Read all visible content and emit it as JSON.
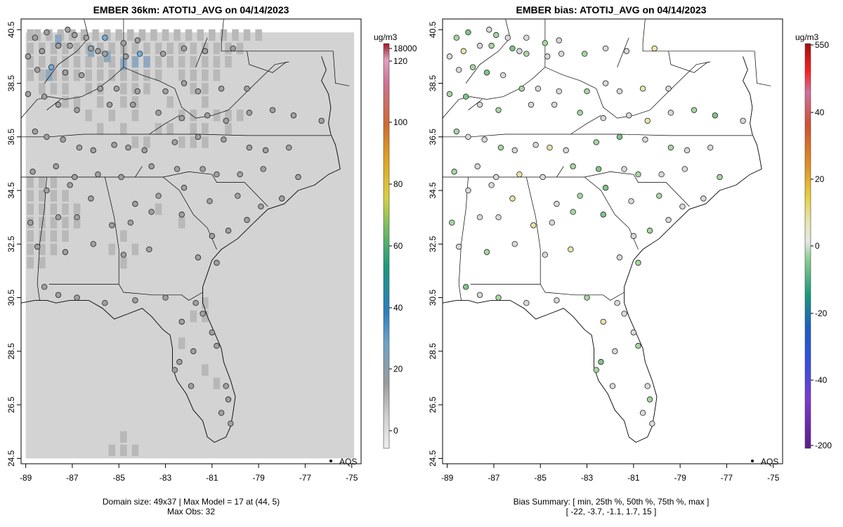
{
  "left_panel": {
    "title": "EMBER 36km: ATOTIJ_AVG on 04/14/2023",
    "footer_line1": "Domain size: 49x37 | Max Model = 17 at (44, 5)",
    "footer_line2": "Max Obs: 32",
    "legend_label": "AQS",
    "colorbar_unit": "ug/m3",
    "colorbar_ticks": [
      "18000",
      "120",
      "100",
      "80",
      "60",
      "40",
      "20",
      "0"
    ]
  },
  "right_panel": {
    "title": "EMBER bias: ATOTIJ_AVG on 04/14/2023",
    "footer_line1": "Bias Summary: [ min, 25th %, 50th %, 75th %, max ]",
    "footer_line2": "[ -22,   -3.7,   -1.1,   1.7,   15 ]",
    "legend_label": "AQS",
    "colorbar_unit": "ug/m3",
    "colorbar_ticks": [
      "550",
      "40",
      "20",
      "0",
      "-20",
      "-40",
      "-200"
    ]
  },
  "axes": {
    "x_ticks": [
      "-89",
      "-87",
      "-85",
      "-83",
      "-81",
      "-79",
      "-77",
      "-75"
    ],
    "y_ticks": [
      "40.5",
      "38.5",
      "36.5",
      "34.5",
      "32.5",
      "30.5",
      "28.5",
      "26.5",
      "24.5"
    ]
  },
  "map_data": {
    "lon_range": [
      -89.2,
      -74.6
    ],
    "lat_range": [
      24.3,
      40.9
    ],
    "sites": [
      [
        -88.6,
        40.2
      ],
      [
        -88.1,
        40.4
      ],
      [
        -87.2,
        40.5
      ],
      [
        -86.9,
        40.3
      ],
      [
        -86.4,
        40.2
      ],
      [
        -85.6,
        40.2
      ],
      [
        -84.8,
        40.0
      ],
      [
        -84.2,
        40.1
      ],
      [
        -88.9,
        39.5
      ],
      [
        -88.3,
        39.7
      ],
      [
        -87.6,
        39.9
      ],
      [
        -87.1,
        39.9
      ],
      [
        -86.2,
        39.8
      ],
      [
        -85.9,
        39.7
      ],
      [
        -85.6,
        39.6
      ],
      [
        -84.7,
        39.5
      ],
      [
        -84.1,
        39.6
      ],
      [
        -83.1,
        39.6
      ],
      [
        -82.2,
        39.8
      ],
      [
        -81.3,
        39.7
      ],
      [
        -80.1,
        39.8
      ],
      [
        -88.5,
        39.0
      ],
      [
        -87.9,
        39.1
      ],
      [
        -87.3,
        38.9
      ],
      [
        -86.6,
        38.8
      ],
      [
        -85.8,
        38.3
      ],
      [
        -85.1,
        38.3
      ],
      [
        -84.2,
        38.2
      ],
      [
        -83.0,
        38.2
      ],
      [
        -82.2,
        38.5
      ],
      [
        -81.6,
        38.2
      ],
      [
        -80.6,
        38.3
      ],
      [
        -79.5,
        38.3
      ],
      [
        -88.9,
        38.1
      ],
      [
        -88.2,
        38.0
      ],
      [
        -87.6,
        37.7
      ],
      [
        -86.8,
        37.5
      ],
      [
        -85.4,
        37.7
      ],
      [
        -84.4,
        37.7
      ],
      [
        -83.3,
        37.4
      ],
      [
        -82.3,
        37.2
      ],
      [
        -81.2,
        37.3
      ],
      [
        -80.4,
        37.1
      ],
      [
        -79.4,
        37.4
      ],
      [
        -78.4,
        37.5
      ],
      [
        -77.5,
        37.3
      ],
      [
        -76.3,
        37.1
      ],
      [
        -88.6,
        36.7
      ],
      [
        -88.1,
        36.5
      ],
      [
        -87.4,
        36.4
      ],
      [
        -86.7,
        36.1
      ],
      [
        -86.1,
        36.0
      ],
      [
        -85.2,
        36.2
      ],
      [
        -84.6,
        36.1
      ],
      [
        -83.9,
        36.0
      ],
      [
        -82.6,
        36.3
      ],
      [
        -81.6,
        36.5
      ],
      [
        -80.5,
        36.4
      ],
      [
        -79.4,
        36.1
      ],
      [
        -78.7,
        36.0
      ],
      [
        -77.7,
        36.1
      ],
      [
        -88.7,
        35.2
      ],
      [
        -87.7,
        35.4
      ],
      [
        -86.9,
        35.0
      ],
      [
        -85.9,
        35.1
      ],
      [
        -84.9,
        35.0
      ],
      [
        -83.6,
        35.4
      ],
      [
        -82.5,
        35.3
      ],
      [
        -81.4,
        35.3
      ],
      [
        -80.8,
        35.1
      ],
      [
        -79.8,
        35.1
      ],
      [
        -78.8,
        35.3
      ],
      [
        -77.3,
        35.0
      ],
      [
        -88.1,
        34.5
      ],
      [
        -87.1,
        34.7
      ],
      [
        -86.2,
        34.2
      ],
      [
        -84.3,
        34.0
      ],
      [
        -83.3,
        34.3
      ],
      [
        -82.2,
        34.6
      ],
      [
        -81.1,
        34.1
      ],
      [
        -79.9,
        34.3
      ],
      [
        -78.9,
        33.9
      ],
      [
        -78.0,
        34.2
      ],
      [
        -88.8,
        33.3
      ],
      [
        -87.6,
        33.5
      ],
      [
        -86.8,
        33.5
      ],
      [
        -85.3,
        33.2
      ],
      [
        -84.5,
        33.3
      ],
      [
        -83.6,
        33.7
      ],
      [
        -82.3,
        33.6
      ],
      [
        -81.0,
        32.8
      ],
      [
        -80.3,
        33.0
      ],
      [
        -79.5,
        33.4
      ],
      [
        -88.5,
        32.4
      ],
      [
        -87.3,
        32.2
      ],
      [
        -86.1,
        32.5
      ],
      [
        -84.8,
        32.1
      ],
      [
        -83.7,
        32.3
      ],
      [
        -81.6,
        32.0
      ],
      [
        -80.8,
        31.8
      ],
      [
        -88.2,
        30.9
      ],
      [
        -87.6,
        30.6
      ],
      [
        -86.8,
        30.5
      ],
      [
        -85.6,
        30.3
      ],
      [
        -84.3,
        30.4
      ],
      [
        -83.0,
        30.5
      ],
      [
        -81.7,
        30.3
      ],
      [
        -81.4,
        29.9
      ],
      [
        -82.3,
        29.6
      ],
      [
        -81.0,
        29.2
      ],
      [
        -80.8,
        28.7
      ],
      [
        -82.4,
        28.1
      ],
      [
        -81.8,
        28.5
      ],
      [
        -82.6,
        27.8
      ],
      [
        -81.9,
        27.2
      ],
      [
        -80.4,
        27.2
      ],
      [
        -80.3,
        26.7
      ],
      [
        -80.6,
        26.2
      ],
      [
        -80.2,
        25.8
      ]
    ],
    "cells_darker": [
      [
        -88.8,
        40.3
      ],
      [
        -88.5,
        40.3
      ],
      [
        -88.0,
        40.3
      ],
      [
        -87.5,
        40.3
      ],
      [
        -87.0,
        40.3
      ],
      [
        -86.5,
        40.3
      ],
      [
        -86.0,
        40.3
      ],
      [
        -85.5,
        40.3
      ],
      [
        -85.0,
        40.3
      ],
      [
        -84.5,
        40.3
      ],
      [
        -84.0,
        40.3
      ],
      [
        -83.5,
        40.3
      ],
      [
        -83.0,
        40.3
      ],
      [
        -82.5,
        40.3
      ],
      [
        -82.0,
        40.3
      ],
      [
        -81.5,
        40.3
      ],
      [
        -81.0,
        40.3
      ],
      [
        -80.5,
        40.3
      ],
      [
        -80.0,
        40.3
      ],
      [
        -79.5,
        40.3
      ],
      [
        -79.0,
        40.3
      ],
      [
        -88.8,
        39.8
      ],
      [
        -88.3,
        39.8
      ],
      [
        -87.8,
        39.8
      ],
      [
        -87.3,
        39.8
      ],
      [
        -86.8,
        39.8
      ],
      [
        -86.3,
        39.8
      ],
      [
        -85.8,
        39.8
      ],
      [
        -85.3,
        39.8
      ],
      [
        -84.8,
        39.8
      ],
      [
        -84.3,
        39.8
      ],
      [
        -83.8,
        39.8
      ],
      [
        -83.3,
        39.8
      ],
      [
        -82.8,
        39.8
      ],
      [
        -82.3,
        39.8
      ],
      [
        -81.8,
        39.8
      ],
      [
        -81.3,
        39.8
      ],
      [
        -80.8,
        39.8
      ],
      [
        -80.3,
        39.8
      ],
      [
        -79.8,
        39.8
      ],
      [
        -88.8,
        39.3
      ],
      [
        -88.3,
        39.3
      ],
      [
        -87.8,
        39.3
      ],
      [
        -87.3,
        39.3
      ],
      [
        -86.8,
        39.3
      ],
      [
        -86.3,
        39.3
      ],
      [
        -85.8,
        39.3
      ],
      [
        -85.3,
        39.3
      ],
      [
        -84.8,
        39.3
      ],
      [
        -84.3,
        39.3
      ],
      [
        -83.8,
        39.3
      ],
      [
        -83.3,
        39.3
      ],
      [
        -82.8,
        39.3
      ],
      [
        -82.3,
        39.3
      ],
      [
        -81.8,
        39.3
      ],
      [
        -81.3,
        39.3
      ],
      [
        -80.8,
        39.3
      ],
      [
        -80.3,
        39.3
      ],
      [
        -88.8,
        38.8
      ],
      [
        -88.3,
        38.8
      ],
      [
        -87.8,
        38.8
      ],
      [
        -87.3,
        38.8
      ],
      [
        -86.8,
        38.8
      ],
      [
        -86.3,
        38.8
      ],
      [
        -85.8,
        38.8
      ],
      [
        -85.3,
        38.8
      ],
      [
        -84.8,
        38.8
      ],
      [
        -84.3,
        38.8
      ],
      [
        -83.8,
        38.8
      ],
      [
        -83.3,
        38.8
      ],
      [
        -82.3,
        38.8
      ],
      [
        -81.8,
        38.8
      ],
      [
        -81.3,
        38.8
      ],
      [
        -80.8,
        38.8
      ],
      [
        -88.3,
        38.3
      ],
      [
        -87.8,
        38.3
      ],
      [
        -87.3,
        38.3
      ],
      [
        -86.3,
        38.3
      ],
      [
        -85.8,
        38.3
      ],
      [
        -84.8,
        38.3
      ],
      [
        -84.3,
        38.3
      ],
      [
        -83.8,
        38.3
      ],
      [
        -81.8,
        38.3
      ],
      [
        -81.3,
        38.3
      ],
      [
        -87.3,
        37.8
      ],
      [
        -86.8,
        37.8
      ],
      [
        -85.8,
        37.8
      ],
      [
        -84.8,
        37.8
      ],
      [
        -84.3,
        37.8
      ],
      [
        -82.8,
        37.8
      ],
      [
        -81.3,
        37.8
      ],
      [
        -86.3,
        37.3
      ],
      [
        -85.3,
        37.3
      ],
      [
        -84.3,
        37.3
      ],
      [
        -82.3,
        37.3
      ],
      [
        -81.8,
        37.3
      ],
      [
        -80.8,
        37.3
      ],
      [
        -80.3,
        37.3
      ],
      [
        -79.8,
        37.3
      ],
      [
        -85.8,
        36.8
      ],
      [
        -84.8,
        36.8
      ],
      [
        -83.3,
        36.8
      ],
      [
        -82.8,
        36.8
      ],
      [
        -81.8,
        36.8
      ],
      [
        -81.3,
        36.8
      ],
      [
        -80.3,
        36.8
      ],
      [
        -84.3,
        36.3
      ],
      [
        -83.8,
        36.3
      ],
      [
        -82.3,
        36.3
      ],
      [
        -81.8,
        36.3
      ],
      [
        -81.3,
        36.3
      ],
      [
        -88.8,
        34.8
      ],
      [
        -88.3,
        34.8
      ],
      [
        -87.8,
        34.8
      ],
      [
        -88.8,
        34.3
      ],
      [
        -88.3,
        34.3
      ],
      [
        -87.8,
        34.3
      ],
      [
        -87.3,
        34.3
      ],
      [
        -88.8,
        33.8
      ],
      [
        -88.3,
        33.8
      ],
      [
        -87.8,
        33.8
      ],
      [
        -87.3,
        33.8
      ],
      [
        -86.8,
        33.8
      ],
      [
        -88.8,
        33.3
      ],
      [
        -88.3,
        33.3
      ],
      [
        -87.8,
        33.3
      ],
      [
        -87.3,
        33.3
      ],
      [
        -86.8,
        33.3
      ],
      [
        -88.8,
        32.8
      ],
      [
        -88.3,
        32.8
      ],
      [
        -87.8,
        32.8
      ],
      [
        -87.3,
        32.8
      ],
      [
        -88.8,
        32.3
      ],
      [
        -88.3,
        32.3
      ],
      [
        -87.8,
        32.3
      ],
      [
        -88.8,
        31.8
      ],
      [
        -88.3,
        31.8
      ],
      [
        -84.3,
        32.3
      ],
      [
        -84.8,
        32.8
      ],
      [
        -85.3,
        32.3
      ],
      [
        -84.8,
        31.8
      ],
      [
        -82.3,
        33.3
      ],
      [
        -83.3,
        33.8
      ],
      [
        -81.3,
        30.3
      ],
      [
        -81.3,
        29.8
      ],
      [
        -81.8,
        29.8
      ],
      [
        -82.3,
        28.8
      ],
      [
        -81.3,
        27.8
      ],
      [
        -80.8,
        27.3
      ],
      [
        -84.8,
        25.3
      ],
      [
        -85.3,
        24.8
      ],
      [
        -84.8,
        24.8
      ],
      [
        -84.3,
        24.8
      ]
    ],
    "cells_blue": [
      [
        -87.6,
        40.1
      ],
      [
        -86.2,
        39.7
      ],
      [
        -85.5,
        39.5
      ],
      [
        -84.8,
        39.2
      ],
      [
        -84.3,
        39.3
      ],
      [
        -83.8,
        39.3
      ],
      [
        -88.0,
        38.8
      ]
    ]
  },
  "colors": {
    "ocean_base": "#d3d3d3",
    "land_dark": "#b8b8b8",
    "land_blue": "#8fa8bf",
    "site_fill_default": "#a0a0a0",
    "bias_site_default": "#d9d9d9",
    "bias_site_green": "#a6d6a0"
  }
}
